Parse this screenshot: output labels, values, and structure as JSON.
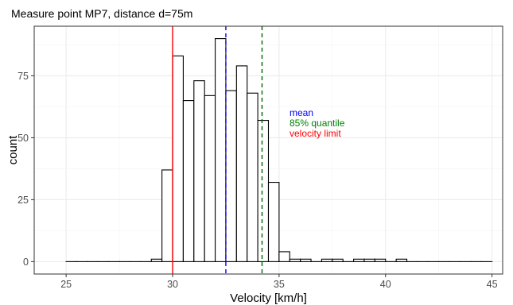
{
  "chart_data": {
    "type": "bar",
    "title": "Measure point MP7, distance d=75m",
    "xlabel": "Velocity [km/h]",
    "ylabel": "count",
    "xlim": [
      23.5,
      45.5
    ],
    "ylim": [
      -5,
      95
    ],
    "x_ticks": [
      25,
      30,
      35,
      40,
      45
    ],
    "y_ticks": [
      0,
      25,
      50,
      75
    ],
    "bin_width": 0.5,
    "bins": [
      {
        "x0": 25.0,
        "count": 0
      },
      {
        "x0": 25.5,
        "count": 0
      },
      {
        "x0": 26.0,
        "count": 0
      },
      {
        "x0": 26.5,
        "count": 0
      },
      {
        "x0": 27.0,
        "count": 0
      },
      {
        "x0": 27.5,
        "count": 0
      },
      {
        "x0": 28.0,
        "count": 0
      },
      {
        "x0": 28.5,
        "count": 0
      },
      {
        "x0": 29.0,
        "count": 1
      },
      {
        "x0": 29.5,
        "count": 37
      },
      {
        "x0": 30.0,
        "count": 83
      },
      {
        "x0": 30.5,
        "count": 65
      },
      {
        "x0": 31.0,
        "count": 73
      },
      {
        "x0": 31.5,
        "count": 67
      },
      {
        "x0": 32.0,
        "count": 90
      },
      {
        "x0": 32.5,
        "count": 69
      },
      {
        "x0": 33.0,
        "count": 79
      },
      {
        "x0": 33.5,
        "count": 68
      },
      {
        "x0": 34.0,
        "count": 57
      },
      {
        "x0": 34.5,
        "count": 32
      },
      {
        "x0": 35.0,
        "count": 4
      },
      {
        "x0": 35.5,
        "count": 1
      },
      {
        "x0": 36.0,
        "count": 1
      },
      {
        "x0": 36.5,
        "count": 0
      },
      {
        "x0": 37.0,
        "count": 1
      },
      {
        "x0": 37.5,
        "count": 1
      },
      {
        "x0": 38.0,
        "count": 0
      },
      {
        "x0": 38.5,
        "count": 1
      },
      {
        "x0": 39.0,
        "count": 1
      },
      {
        "x0": 39.5,
        "count": 1
      },
      {
        "x0": 40.0,
        "count": 0
      },
      {
        "x0": 40.5,
        "count": 1
      },
      {
        "x0": 41.0,
        "count": 0
      },
      {
        "x0": 41.5,
        "count": 0
      },
      {
        "x0": 42.0,
        "count": 0
      },
      {
        "x0": 42.5,
        "count": 0
      },
      {
        "x0": 43.0,
        "count": 0
      },
      {
        "x0": 43.5,
        "count": 0
      },
      {
        "x0": 44.0,
        "count": 0
      },
      {
        "x0": 44.5,
        "count": 0
      }
    ],
    "vlines": [
      {
        "name": "velocity limit",
        "x": 30.0,
        "color": "#ff0000",
        "dashed": false
      },
      {
        "name": "mean",
        "x": 32.5,
        "color": "#0000ff",
        "dashed": true
      },
      {
        "name": "85% quantile",
        "x": 34.2,
        "color": "#006400",
        "dashed": true
      }
    ],
    "annotations": [
      {
        "text": "mean",
        "color": "#0000ff"
      },
      {
        "text": " 85% quantile",
        "color": "#008000"
      },
      {
        "text": "velocity limit",
        "color": "#ff0000"
      }
    ],
    "grid": true,
    "legend": "none"
  }
}
